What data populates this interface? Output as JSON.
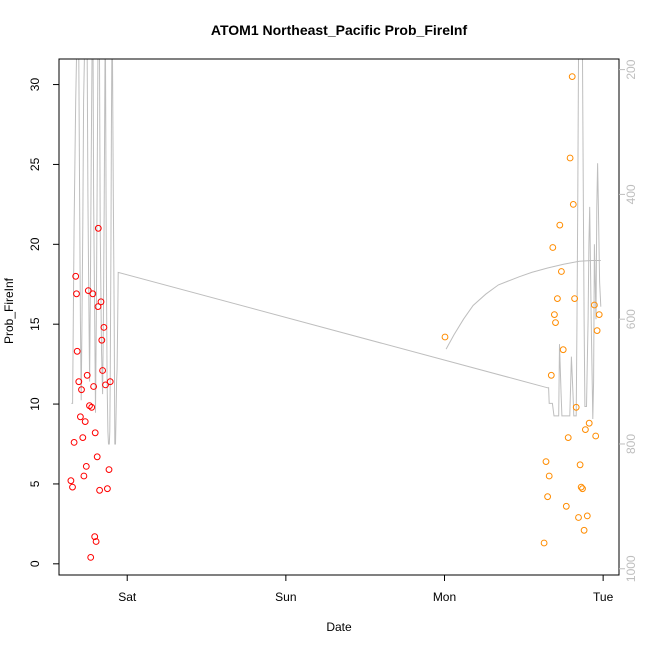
{
  "chart_data": {
    "type": "scatter",
    "title": "ATOM1 Northeast_Pacific Prob_FireInf",
    "xlabel": "Date",
    "ylabel": "Prob_FireInf",
    "x_ticks": [
      {
        "label": "Sat",
        "value": 1.0
      },
      {
        "label": "Sun",
        "value": 2.0
      },
      {
        "label": "Mon",
        "value": 3.0
      },
      {
        "label": "Tue",
        "value": 4.0
      }
    ],
    "xlim": [
      0.57,
      4.1
    ],
    "y_ticks": [
      0,
      5,
      10,
      15,
      20,
      25,
      30
    ],
    "ylim": [
      -0.7,
      31.6
    ],
    "y2_ticks": [
      200,
      400,
      600,
      800,
      1000
    ],
    "y2lim": [
      1010,
      183
    ],
    "y2_direction": "reversed",
    "grid": false,
    "colors": {
      "series1": "#ff0000",
      "series2": "#ff8c00",
      "line": "#bebebe"
    },
    "series": [
      {
        "values": [
          [
            0.645,
            5.2
          ],
          [
            0.655,
            4.8
          ],
          [
            0.665,
            7.6
          ],
          [
            0.675,
            18.0
          ],
          [
            0.68,
            16.9
          ],
          [
            0.685,
            13.3
          ],
          [
            0.695,
            11.4
          ],
          [
            0.705,
            9.2
          ],
          [
            0.712,
            10.9
          ],
          [
            0.72,
            7.9
          ],
          [
            0.727,
            5.5
          ],
          [
            0.735,
            8.9
          ],
          [
            0.742,
            6.1
          ],
          [
            0.748,
            11.8
          ],
          [
            0.755,
            17.1
          ],
          [
            0.762,
            9.9
          ],
          [
            0.77,
            0.4
          ],
          [
            0.776,
            9.8
          ],
          [
            0.783,
            16.9
          ],
          [
            0.788,
            11.1
          ],
          [
            0.795,
            1.7
          ],
          [
            0.798,
            8.2
          ],
          [
            0.804,
            1.4
          ],
          [
            0.811,
            6.7
          ],
          [
            0.816,
            16.1
          ],
          [
            0.818,
            21.0
          ],
          [
            0.826,
            4.6
          ],
          [
            0.835,
            16.4
          ],
          [
            0.84,
            14.0
          ],
          [
            0.845,
            12.1
          ],
          [
            0.853,
            14.8
          ],
          [
            0.863,
            11.2
          ],
          [
            0.875,
            4.7
          ],
          [
            0.885,
            5.9
          ],
          [
            0.893,
            11.4
          ]
        ]
      },
      {
        "values": [
          [
            3.003,
            14.2
          ],
          [
            3.628,
            1.3
          ],
          [
            3.64,
            6.4
          ],
          [
            3.65,
            4.2
          ],
          [
            3.66,
            5.5
          ],
          [
            3.673,
            11.8
          ],
          [
            3.683,
            19.8
          ],
          [
            3.693,
            15.6
          ],
          [
            3.7,
            15.1
          ],
          [
            3.712,
            16.6
          ],
          [
            3.727,
            21.2
          ],
          [
            3.737,
            18.3
          ],
          [
            3.748,
            13.4
          ],
          [
            3.768,
            3.6
          ],
          [
            3.78,
            7.9
          ],
          [
            3.792,
            25.4
          ],
          [
            3.805,
            30.5
          ],
          [
            3.812,
            22.5
          ],
          [
            3.82,
            16.6
          ],
          [
            3.83,
            9.8
          ],
          [
            3.845,
            2.9
          ],
          [
            3.855,
            6.2
          ],
          [
            3.862,
            4.8
          ],
          [
            3.87,
            4.7
          ],
          [
            3.88,
            2.1
          ],
          [
            3.888,
            8.4
          ],
          [
            3.9,
            3.0
          ],
          [
            3.912,
            8.8
          ],
          [
            3.945,
            16.2
          ],
          [
            3.953,
            8.0
          ],
          [
            3.962,
            14.6
          ],
          [
            3.975,
            15.6
          ]
        ]
      }
    ],
    "line_series": {
      "axis": "right",
      "segments": [
        [
          [
            0.648,
            735
          ],
          [
            0.656,
            735
          ],
          [
            0.66,
            600
          ],
          [
            0.665,
            450
          ],
          [
            0.67,
            350
          ],
          [
            0.675,
            250
          ],
          [
            0.68,
            183
          ],
          [
            0.695,
            183
          ],
          [
            0.7,
            400
          ],
          [
            0.705,
            600
          ],
          [
            0.71,
            730
          ],
          [
            0.715,
            600
          ],
          [
            0.72,
            450
          ],
          [
            0.725,
            250
          ],
          [
            0.73,
            183
          ],
          [
            0.748,
            183
          ],
          [
            0.752,
            400
          ],
          [
            0.757,
            550
          ],
          [
            0.763,
            700
          ],
          [
            0.768,
            550
          ],
          [
            0.773,
            350
          ],
          [
            0.778,
            183
          ],
          [
            0.785,
            183
          ],
          [
            0.788,
            400
          ],
          [
            0.795,
            600
          ],
          [
            0.8,
            750
          ],
          [
            0.805,
            600
          ],
          [
            0.81,
            400
          ],
          [
            0.815,
            183
          ],
          [
            0.825,
            183
          ],
          [
            0.83,
            450
          ],
          [
            0.838,
            650
          ],
          [
            0.845,
            720
          ],
          [
            0.85,
            600
          ],
          [
            0.855,
            420
          ],
          [
            0.86,
            183
          ],
          [
            0.863,
            183
          ],
          [
            0.868,
            500
          ],
          [
            0.873,
            700
          ],
          [
            0.878,
            780
          ],
          [
            0.882,
            800
          ],
          [
            0.887,
            800
          ],
          [
            0.89,
            780
          ],
          [
            0.893,
            700
          ],
          [
            0.897,
            500
          ],
          [
            0.9,
            300
          ],
          [
            0.903,
            183
          ],
          [
            0.907,
            183
          ],
          [
            0.912,
            400
          ],
          [
            0.918,
            600
          ],
          [
            0.922,
            800
          ],
          [
            0.926,
            800
          ],
          [
            0.93,
            750
          ],
          [
            0.933,
            700
          ],
          [
            0.936,
            680
          ],
          [
            0.94,
            600
          ],
          [
            0.943,
            525
          ],
          [
            3.65,
            710
          ],
          [
            3.656,
            710
          ],
          [
            3.66,
            735
          ],
          [
            3.68,
            735
          ],
          [
            3.69,
            755
          ],
          [
            3.7,
            755
          ],
          [
            3.72,
            755
          ],
          [
            3.725,
            640
          ],
          [
            3.73,
            680
          ],
          [
            3.735,
            720
          ],
          [
            3.74,
            755
          ],
          [
            3.79,
            755
          ],
          [
            3.8,
            660
          ],
          [
            3.81,
            720
          ],
          [
            3.815,
            755
          ],
          [
            3.83,
            755
          ],
          [
            3.835,
            600
          ],
          [
            3.84,
            400
          ],
          [
            3.845,
            183
          ],
          [
            3.87,
            183
          ],
          [
            3.875,
            400
          ],
          [
            3.88,
            600
          ],
          [
            3.885,
            740
          ],
          [
            3.895,
            740
          ],
          [
            3.905,
            600
          ],
          [
            3.91,
            480
          ],
          [
            3.915,
            420
          ],
          [
            3.925,
            600
          ],
          [
            3.935,
            760
          ],
          [
            3.94,
            700
          ],
          [
            3.945,
            480
          ],
          [
            3.95,
            540
          ],
          [
            3.955,
            600
          ],
          [
            3.96,
            420
          ],
          [
            3.965,
            350
          ],
          [
            3.97,
            420
          ],
          [
            3.978,
            540
          ],
          [
            3.985,
            580
          ]
        ],
        [
          [
            3.01,
            648
          ],
          [
            3.06,
            625
          ],
          [
            3.12,
            600
          ],
          [
            3.18,
            578
          ],
          [
            3.26,
            560
          ],
          [
            3.34,
            545
          ],
          [
            3.4,
            539
          ],
          [
            3.47,
            532
          ],
          [
            3.55,
            525
          ],
          [
            3.65,
            518
          ],
          [
            3.75,
            512
          ],
          [
            3.85,
            507
          ],
          [
            3.93,
            506
          ],
          [
            3.985,
            506
          ]
        ]
      ]
    }
  }
}
